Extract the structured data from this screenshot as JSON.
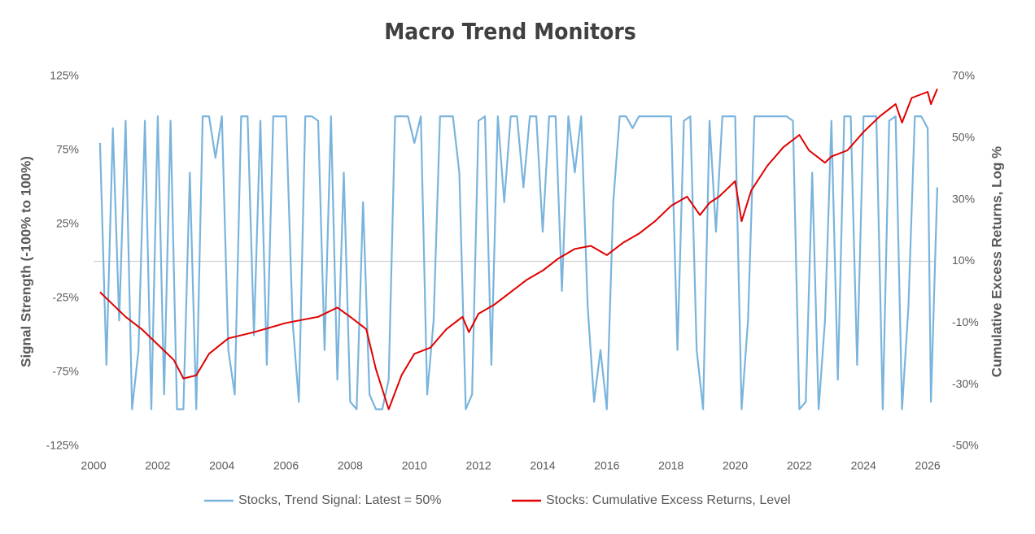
{
  "chart_data": {
    "type": "line",
    "title": "Macro Trend Monitors",
    "y_label": "Signal Strength (-100% to 100%)",
    "y2_label": "Cumulative Excess Returns, Log %",
    "xlim": [
      2000,
      2026.2
    ],
    "xticks": [
      2000,
      2002,
      2004,
      2006,
      2008,
      2010,
      2012,
      2014,
      2016,
      2018,
      2020,
      2022,
      2024,
      2026
    ],
    "ylim": [
      -125,
      125
    ],
    "yticks": [
      {
        "value": -125,
        "label": "-125%"
      },
      {
        "value": -75,
        "label": "-75%"
      },
      {
        "value": -25,
        "label": "-25%"
      },
      {
        "value": 25,
        "label": "25%"
      },
      {
        "value": 75,
        "label": "75%"
      },
      {
        "value": 125,
        "label": "125%"
      }
    ],
    "y2lim": [
      -50,
      70
    ],
    "y2ticks": [
      {
        "value": -50,
        "label": "-50%"
      },
      {
        "value": -30,
        "label": "-30%"
      },
      {
        "value": -10,
        "label": "-10%"
      },
      {
        "value": 10,
        "label": "10%"
      },
      {
        "value": 30,
        "label": "30%"
      },
      {
        "value": 50,
        "label": "50%"
      },
      {
        "value": 70,
        "label": "70%"
      }
    ],
    "legend": "bottom",
    "series": [
      {
        "name": "Stocks, Trend Signal: Latest = 50%",
        "color": "#7ab4dc",
        "axis": "y",
        "x": [
          2000.2,
          2000.4,
          2000.6,
          2000.8,
          2001.0,
          2001.2,
          2001.4,
          2001.6,
          2001.8,
          2002.0,
          2002.2,
          2002.4,
          2002.6,
          2002.8,
          2003.0,
          2003.2,
          2003.4,
          2003.6,
          2003.8,
          2004.0,
          2004.2,
          2004.4,
          2004.6,
          2004.8,
          2005.0,
          2005.2,
          2005.4,
          2005.6,
          2005.8,
          2006.0,
          2006.2,
          2006.4,
          2006.6,
          2006.8,
          2007.0,
          2007.2,
          2007.4,
          2007.6,
          2007.8,
          2008.0,
          2008.2,
          2008.4,
          2008.6,
          2008.8,
          2009.0,
          2009.2,
          2009.4,
          2009.6,
          2009.8,
          2010.0,
          2010.2,
          2010.4,
          2010.6,
          2010.8,
          2011.0,
          2011.2,
          2011.4,
          2011.6,
          2011.8,
          2012.0,
          2012.2,
          2012.4,
          2012.6,
          2012.8,
          2013.0,
          2013.2,
          2013.4,
          2013.6,
          2013.8,
          2014.0,
          2014.2,
          2014.4,
          2014.6,
          2014.8,
          2015.0,
          2015.2,
          2015.4,
          2015.6,
          2015.8,
          2016.0,
          2016.2,
          2016.4,
          2016.6,
          2016.8,
          2017.0,
          2017.2,
          2017.4,
          2017.6,
          2017.8,
          2018.0,
          2018.2,
          2018.4,
          2018.6,
          2018.8,
          2019.0,
          2019.2,
          2019.4,
          2019.6,
          2019.8,
          2020.0,
          2020.2,
          2020.4,
          2020.6,
          2020.8,
          2021.0,
          2021.2,
          2021.4,
          2021.6,
          2021.8,
          2022.0,
          2022.2,
          2022.4,
          2022.6,
          2022.8,
          2023.0,
          2023.2,
          2023.4,
          2023.6,
          2023.8,
          2024.0,
          2024.2,
          2024.4,
          2024.6,
          2024.8,
          2025.0,
          2025.2,
          2025.4,
          2025.6,
          2025.8,
          2026.0,
          2026.1,
          2026.3
        ],
        "values": [
          80,
          -70,
          90,
          -40,
          95,
          -100,
          -60,
          95,
          -100,
          98,
          -90,
          95,
          -100,
          -100,
          60,
          -100,
          98,
          98,
          70,
          98,
          -60,
          -90,
          98,
          98,
          -50,
          95,
          -70,
          98,
          98,
          98,
          -40,
          -95,
          98,
          98,
          95,
          -60,
          98,
          -80,
          60,
          -95,
          -100,
          40,
          -90,
          -100,
          -100,
          -80,
          98,
          98,
          98,
          80,
          98,
          -90,
          -40,
          98,
          98,
          98,
          60,
          -100,
          -90,
          95,
          98,
          -70,
          98,
          40,
          98,
          98,
          50,
          98,
          98,
          20,
          98,
          98,
          -20,
          98,
          60,
          98,
          -30,
          -95,
          -60,
          -100,
          40,
          98,
          98,
          90,
          98,
          98,
          98,
          98,
          98,
          98,
          -60,
          95,
          98,
          -60,
          -100,
          95,
          20,
          98,
          98,
          98,
          -100,
          -40,
          98,
          98,
          98,
          98,
          98,
          98,
          95,
          -100,
          -95,
          60,
          -100,
          -40,
          95,
          -80,
          98,
          98,
          -70,
          98,
          98,
          98,
          -100,
          95,
          98,
          -100,
          -30,
          98,
          98,
          90,
          -95,
          50
        ]
      },
      {
        "name": "Stocks:  Cumulative Excess Returns, Level",
        "color": "#e00000",
        "axis": "y2",
        "x": [
          2000.2,
          2000.5,
          2001.0,
          2001.5,
          2002.0,
          2002.5,
          2002.8,
          2003.2,
          2003.6,
          2004.2,
          2005.0,
          2006.0,
          2007.0,
          2007.6,
          2008.0,
          2008.5,
          2008.8,
          2009.2,
          2009.6,
          2010.0,
          2010.5,
          2011.0,
          2011.5,
          2011.7,
          2012.0,
          2012.5,
          2013.0,
          2013.5,
          2014.0,
          2014.5,
          2015.0,
          2015.5,
          2016.0,
          2016.5,
          2017.0,
          2017.5,
          2018.0,
          2018.5,
          2018.9,
          2019.2,
          2019.5,
          2020.0,
          2020.2,
          2020.5,
          2021.0,
          2021.5,
          2022.0,
          2022.3,
          2022.8,
          2023.0,
          2023.5,
          2024.0,
          2024.5,
          2025.0,
          2025.2,
          2025.5,
          2026.0,
          2026.1,
          2026.3
        ],
        "values": [
          0,
          -3,
          -8,
          -12,
          -17,
          -22,
          -28,
          -27,
          -20,
          -15,
          -13,
          -10,
          -8,
          -5,
          -8,
          -12,
          -25,
          -38,
          -27,
          -20,
          -18,
          -12,
          -8,
          -13,
          -7,
          -4,
          0,
          4,
          7,
          11,
          14,
          15,
          12,
          16,
          19,
          23,
          28,
          31,
          25,
          29,
          31,
          36,
          23,
          33,
          41,
          47,
          51,
          46,
          42,
          44,
          46,
          52,
          57,
          61,
          55,
          63,
          65,
          61,
          66
        ]
      }
    ]
  }
}
